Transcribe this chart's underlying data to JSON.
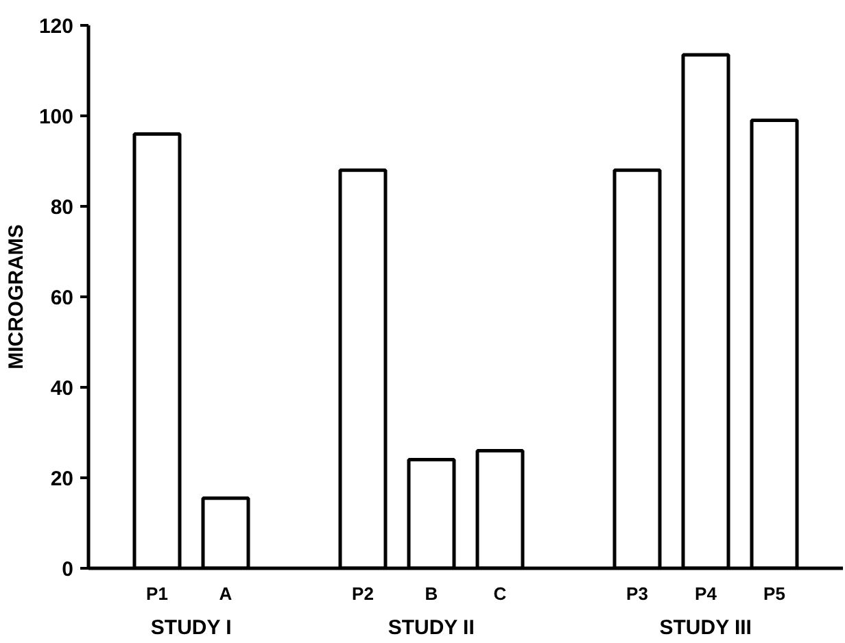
{
  "chart_data": {
    "type": "bar",
    "ylabel": "MICROGRAMS",
    "categories": [
      "P1",
      "A",
      null,
      "P2",
      "B",
      "C",
      null,
      "P3",
      "P4",
      "P5"
    ],
    "values": [
      96,
      15.5,
      null,
      88,
      24,
      26,
      null,
      88,
      113.5,
      99
    ],
    "color": "#ffffff",
    "ylim": [
      0,
      120
    ],
    "yticks": [
      0,
      20,
      40,
      60,
      80,
      100,
      120
    ],
    "annotations": [
      "STUDY I",
      "STUDY II",
      "STUDY III"
    ],
    "grid": false
  }
}
